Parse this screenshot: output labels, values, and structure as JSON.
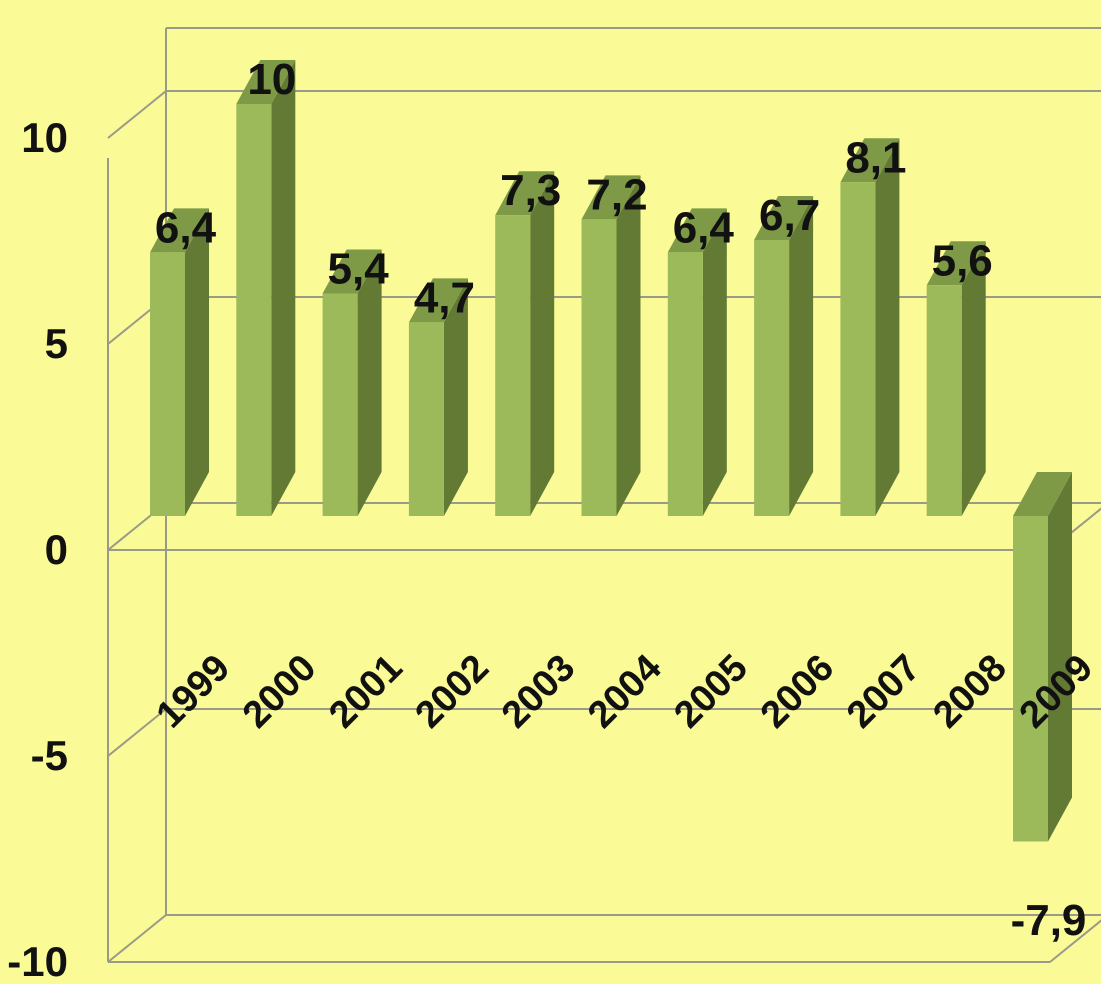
{
  "chart_data": {
    "type": "bar",
    "title": "",
    "xlabel": "",
    "ylabel": "",
    "categories": [
      "1999",
      "2000",
      "2001",
      "2002",
      "2003",
      "2004",
      "2005",
      "2006",
      "2007",
      "2008",
      "2009"
    ],
    "values": [
      6.4,
      10,
      5.4,
      4.7,
      7.3,
      7.2,
      6.4,
      6.7,
      8.1,
      5.6,
      -7.9
    ],
    "value_labels": [
      "6,4",
      "10",
      "5,4",
      "4,7",
      "7,3",
      "7,2",
      "6,4",
      "6,7",
      "8,1",
      "5,6",
      "-7,9"
    ],
    "ylim": [
      -10,
      10
    ],
    "yticks": [
      10,
      5,
      0,
      -5,
      -10
    ],
    "ytick_labels": [
      "10",
      "5",
      "0",
      "-5",
      "-10"
    ],
    "grid": true,
    "style": "3d-column"
  },
  "colors": {
    "background": "#fafa96",
    "bar_front": "#9cba5a",
    "bar_side": "#627a34",
    "bar_top": "#7e9a46",
    "grid": "#9a9a8a",
    "text": "#111111"
  }
}
